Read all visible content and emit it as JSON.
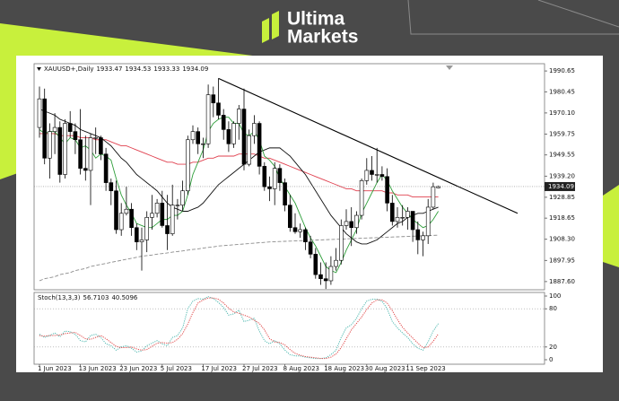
{
  "brand": {
    "line1": "Ultima",
    "line2": "Markets"
  },
  "chart_data": [
    {
      "type": "candlestick",
      "title": "XAUUSD+,Daily",
      "categories": [
        "1 Jun 2023",
        null,
        null,
        null,
        null,
        null,
        null,
        null,
        "13 Jun 2023",
        null,
        null,
        null,
        null,
        null,
        null,
        null,
        "23 Jun 2023",
        null,
        null,
        null,
        null,
        null,
        null,
        null,
        "5 Jul 2023",
        null,
        null,
        null,
        null,
        null,
        null,
        null,
        "17 Jul 2023",
        null,
        null,
        null,
        null,
        null,
        null,
        null,
        "27 Jul 2023",
        null,
        null,
        null,
        null,
        null,
        null,
        null,
        "8 Aug 2023",
        null,
        null,
        null,
        null,
        null,
        null,
        null,
        "18 Aug 2023",
        null,
        null,
        null,
        null,
        null,
        null,
        null,
        "30 Aug 2023",
        null,
        null,
        null,
        null,
        null,
        null,
        null,
        "11 Sep 2023",
        null,
        null,
        null,
        null,
        null,
        null
      ],
      "open": [
        1963,
        1977,
        1948,
        1961,
        1963,
        1940,
        1965,
        1961,
        1957,
        1943,
        1942,
        1958,
        1958,
        1950,
        1936,
        1932,
        1913,
        1921,
        1923,
        1914,
        1907,
        1908,
        1919,
        1921,
        1926,
        1915,
        1911,
        1925,
        1925,
        1932,
        1957,
        1961,
        1955,
        1955,
        1979,
        1975,
        1969,
        1962,
        1955,
        1965,
        1972,
        1945,
        1959,
        1965,
        1944,
        1934,
        1933,
        1943,
        1936,
        1925,
        1914,
        1912,
        1913,
        1907,
        1901,
        1891,
        1889,
        1888,
        1895,
        1898,
        1915,
        1917,
        1914,
        1920,
        1937,
        1942,
        1940,
        1940,
        1939,
        1926,
        1917,
        1919,
        1919,
        1922,
        1913,
        1908,
        1910,
        1924,
        1933.47
      ],
      "high": [
        1983,
        1982,
        1965,
        1970,
        1966,
        1967,
        1971,
        1965,
        1972,
        1959,
        1960,
        1963,
        1959,
        1953,
        1938,
        1937,
        1926,
        1934,
        1926,
        1916,
        1914,
        1922,
        1930,
        1928,
        1932,
        1930,
        1935,
        1928,
        1937,
        1959,
        1964,
        1963,
        1958,
        1984,
        1983,
        1987,
        1972,
        1966,
        1966,
        1974,
        1982,
        1962,
        1969,
        1966,
        1946,
        1939,
        1946,
        1945,
        1938,
        1930,
        1921,
        1916,
        1914,
        1910,
        1904,
        1897,
        1897,
        1900,
        1904,
        1918,
        1923,
        1924,
        1922,
        1938,
        1948,
        1949,
        1953,
        1944,
        1943,
        1930,
        1924,
        1925,
        1924,
        1922,
        1917,
        1912,
        1928,
        1936,
        1934.53
      ],
      "low": [
        1958,
        1945,
        1938,
        1950,
        1936,
        1938,
        1958,
        1950,
        1940,
        1937,
        1925,
        1950,
        1947,
        1932,
        1925,
        1911,
        1910,
        1920,
        1910,
        1903,
        1893,
        1902,
        1913,
        1919,
        1914,
        1903,
        1910,
        1918,
        1922,
        1930,
        1955,
        1950,
        1948,
        1953,
        1968,
        1967,
        1957,
        1951,
        1953,
        1957,
        1942,
        1944,
        1955,
        1940,
        1932,
        1927,
        1925,
        1932,
        1922,
        1912,
        1911,
        1909,
        1903,
        1899,
        1889,
        1886,
        1884,
        1886,
        1893,
        1896,
        1913,
        1905,
        1911,
        1918,
        1935,
        1937,
        1936,
        1937,
        1922,
        1915,
        1914,
        1915,
        1913,
        1907,
        1901,
        1900,
        1906,
        1923,
        1933.33
      ],
      "close": [
        1977,
        1948,
        1961,
        1963,
        1940,
        1965,
        1961,
        1957,
        1943,
        1942,
        1958,
        1958,
        1950,
        1936,
        1932,
        1913,
        1921,
        1923,
        1914,
        1907,
        1908,
        1919,
        1921,
        1926,
        1915,
        1911,
        1925,
        1925,
        1932,
        1957,
        1961,
        1955,
        1955,
        1979,
        1975,
        1969,
        1962,
        1955,
        1965,
        1972,
        1945,
        1959,
        1965,
        1944,
        1934,
        1933,
        1943,
        1936,
        1925,
        1914,
        1912,
        1913,
        1907,
        1901,
        1891,
        1889,
        1888,
        1895,
        1898,
        1915,
        1917,
        1914,
        1920,
        1937,
        1942,
        1940,
        1940,
        1939,
        1926,
        1917,
        1919,
        1919,
        1922,
        1913,
        1908,
        1910,
        1924,
        1934,
        1934.09
      ],
      "up_color": "#ffffff",
      "down_color": "#000000",
      "candle_outline": "#000000",
      "lines": [
        {
          "color": "#e0404f",
          "dash": "solid",
          "values": [
            1960,
            1960,
            1960,
            1960,
            1959,
            1959,
            1959,
            1959,
            1958,
            1958,
            1958,
            1957,
            1957,
            1957,
            1956,
            1955,
            1954,
            1954,
            1953,
            1952,
            1951,
            1950,
            1949,
            1948,
            1947,
            1946,
            1946,
            1945,
            1945,
            1945,
            1946,
            1946,
            1947,
            1948,
            1948,
            1949,
            1949,
            1949,
            1949,
            1950,
            1950,
            1950,
            1950,
            1949,
            1948,
            1948,
            1947,
            1946,
            1945,
            1944,
            1943,
            1942,
            1941,
            1940,
            1939,
            1938,
            1937,
            1936,
            1935,
            1934,
            1933,
            1933,
            1932,
            1932,
            1932,
            1932,
            1932,
            1932,
            1931,
            1931,
            1930,
            1930,
            1930,
            1929,
            1929,
            1929,
            1929,
            1929,
            1929
          ]
        },
        {
          "color": "#111111",
          "dash": "solid",
          "values": [
            1972,
            1971,
            1970,
            1969,
            1967,
            1966,
            1965,
            1964,
            1962,
            1961,
            1960,
            1959,
            1958,
            1956,
            1954,
            1951,
            1948,
            1946,
            1943,
            1940,
            1938,
            1936,
            1934,
            1932,
            1929,
            1926,
            1924,
            1923,
            1922,
            1922,
            1923,
            1924,
            1926,
            1929,
            1932,
            1935,
            1937,
            1939,
            1941,
            1943,
            1945,
            1947,
            1949,
            1951,
            1952,
            1953,
            1953,
            1953,
            1951,
            1949,
            1946,
            1943,
            1940,
            1936,
            1932,
            1928,
            1924,
            1920,
            1917,
            1914,
            1911,
            1909,
            1907,
            1906,
            1906,
            1907,
            1908,
            1910,
            1912,
            1914,
            1916,
            1917,
            1919,
            1920,
            1921,
            1921,
            1922,
            1923,
            1924
          ]
        },
        {
          "color": "#2e9e3a",
          "dash": "solid",
          "values": [
            1962,
            1960,
            1961,
            1961,
            1958,
            1955,
            1958,
            1957,
            1953,
            1954,
            1952,
            1948,
            1950,
            1949,
            1947,
            1938,
            1930,
            1925,
            1921,
            1916,
            1915,
            1914,
            1914,
            1916,
            1918,
            1918,
            1920,
            1920,
            1922,
            1930,
            1940,
            1946,
            1952,
            1961,
            1965,
            1967,
            1968,
            1968,
            1965,
            1965,
            1960,
            1959,
            1961,
            1957,
            1949,
            1947,
            1944,
            1938,
            1934,
            1930,
            1926,
            1920,
            1914,
            1909,
            1905,
            1900,
            1895,
            1893,
            1892,
            1897,
            1903,
            1908,
            1913,
            1921,
            1926,
            1931,
            1936,
            1940,
            1937,
            1932,
            1928,
            1924,
            1921,
            1918,
            1916,
            1914,
            1915,
            1918,
            1922
          ]
        },
        {
          "color": "#8c8c8c",
          "dash": "dashed",
          "values": [
            1888,
            1889,
            1889.5,
            1890,
            1891,
            1891.5,
            1892,
            1893,
            1893.5,
            1894,
            1895,
            1895.5,
            1896,
            1896.5,
            1897,
            1897.5,
            1898,
            1898.5,
            1899,
            1899.5,
            1900,
            1900.3,
            1900.6,
            1901,
            1901.3,
            1901.6,
            1902,
            1902.3,
            1902.6,
            1903,
            1903.3,
            1903.6,
            1904,
            1904.3,
            1904.6,
            1905,
            1905.2,
            1905.4,
            1905.6,
            1905.8,
            1906,
            1906.2,
            1906.4,
            1906.6,
            1906.8,
            1907,
            1907.1,
            1907.2,
            1907.3,
            1907.4,
            1907.5,
            1907.6,
            1907.7,
            1907.8,
            1907.9,
            1908,
            1908.1,
            1908.2,
            1908.3,
            1908.4,
            1908.5,
            1908.6,
            1908.7,
            1908.8,
            1908.9,
            1909,
            1909.1,
            1909.2,
            1909.3,
            1909.4,
            1909.5,
            1909.6,
            1909.7,
            1909.8,
            1909.9,
            1910,
            1910.1,
            1910.2,
            1910.3
          ]
        }
      ],
      "trendline": {
        "color": "#000000",
        "x": [
          35,
          93.5
        ],
        "y": [
          1987,
          1921
        ]
      },
      "current_price_line": true,
      "ylim": [
        1883.6,
        1994.2
      ],
      "yticks": [
        1990.65,
        1980.45,
        {
          "value": 1970.1,
          "label": "1970.10"
        },
        1959.75,
        1949.55,
        {
          "value": 1939.2,
          "label": "1939.20"
        },
        1928.85,
        1918.65,
        {
          "value": 1908.3,
          "label": "1908.30"
        },
        1897.95,
        {
          "value": 1887.6,
          "label": "1887.60"
        }
      ],
      "grid": false
    },
    {
      "type": "line",
      "title": "Stoch(13,3,3)",
      "series": [
        {
          "color": "#4fb8b0",
          "dash": "dotted",
          "values": [
            40,
            35,
            38,
            42,
            36,
            45,
            44,
            40,
            30,
            28,
            38,
            40,
            35,
            25,
            22,
            15,
            20,
            22,
            18,
            12,
            14,
            22,
            26,
            30,
            25,
            22,
            35,
            38,
            50,
            80,
            92,
            96,
            95,
            99,
            96,
            90,
            82,
            70,
            72,
            78,
            60,
            62,
            65,
            45,
            30,
            25,
            30,
            25,
            15,
            8,
            6,
            6,
            4,
            3,
            2,
            2,
            3,
            8,
            15,
            35,
            50,
            55,
            65,
            80,
            92,
            95,
            95,
            92,
            80,
            60,
            50,
            42,
            35,
            25,
            18,
            15,
            28,
            45,
            56.7103
          ]
        },
        {
          "color": "#e04848",
          "dash": "dotted",
          "values": [
            38,
            37,
            38,
            38,
            39,
            41,
            42,
            43,
            38,
            33,
            32,
            35,
            38,
            33,
            27,
            21,
            19,
            19,
            20,
            17,
            15,
            16,
            21,
            26,
            27,
            26,
            27,
            32,
            41,
            56,
            74,
            89,
            94,
            97,
            97,
            95,
            89,
            81,
            75,
            73,
            70,
            67,
            62,
            57,
            47,
            33,
            28,
            27,
            23,
            16,
            10,
            7,
            5,
            4,
            3,
            2,
            2,
            4,
            9,
            19,
            33,
            47,
            57,
            67,
            79,
            89,
            94,
            94,
            89,
            77,
            63,
            51,
            42,
            34,
            26,
            19,
            20,
            29,
            40.5096
          ]
        }
      ],
      "ylim": [
        0,
        100
      ],
      "yticks": [
        100,
        80,
        20,
        0
      ],
      "grid": true
    }
  ]
}
